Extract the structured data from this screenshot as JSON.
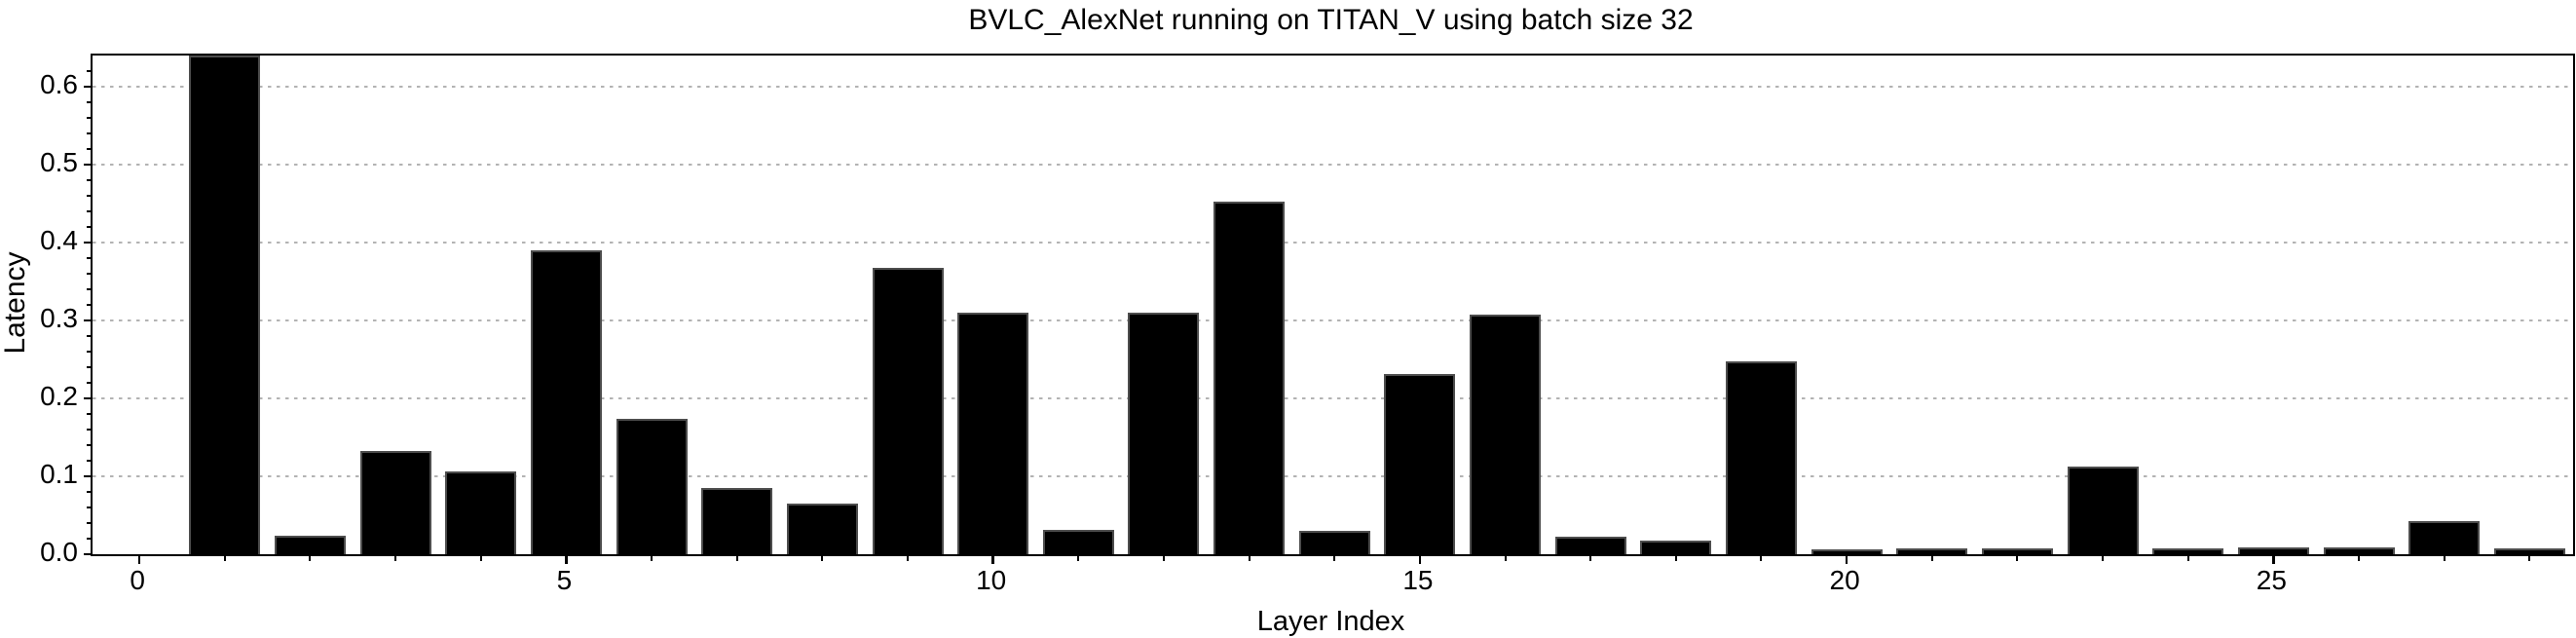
{
  "page": {
    "background": "#ffffff"
  },
  "chart_data": {
    "type": "bar",
    "title": "BVLC_AlexNet running on TITAN_V using batch size 32",
    "xlabel": "Layer Index",
    "ylabel": "Latency",
    "x": [
      1,
      2,
      3,
      4,
      5,
      6,
      7,
      8,
      9,
      10,
      11,
      12,
      13,
      14,
      15,
      16,
      17,
      18,
      19,
      20,
      21,
      22,
      23,
      24,
      25,
      26,
      27,
      28
    ],
    "values": [
      0.64,
      0.024,
      0.132,
      0.106,
      0.39,
      0.174,
      0.085,
      0.065,
      0.367,
      0.31,
      0.031,
      0.31,
      0.453,
      0.03,
      0.231,
      0.307,
      0.023,
      0.018,
      0.247,
      0.006,
      0.008,
      0.008,
      0.113,
      0.008,
      0.009,
      0.009,
      0.042,
      0.008
    ],
    "bar_width": 0.833,
    "xticks": [
      0,
      5,
      10,
      15,
      20,
      25
    ],
    "xtick_labels": [
      "0",
      "5",
      "10",
      "15",
      "20",
      "25"
    ],
    "yticks": [
      0,
      0.1,
      0.2,
      0.3,
      0.4,
      0.5,
      0.6
    ],
    "ytick_labels": [
      "0.0",
      "0.1",
      "0.2",
      "0.3",
      "0.4",
      "0.5",
      "0.6"
    ],
    "xlim": [
      -0.55,
      28.51
    ],
    "ylim": [
      0,
      0.64
    ],
    "y_minor_step": 0.02,
    "x_minor_step": 1,
    "grid": {
      "axis": "y",
      "style": "dotted",
      "color": "#b3b3b3",
      "on_ticks": [
        0.1,
        0.2,
        0.3,
        0.4,
        0.5,
        0.6
      ]
    },
    "legend": null,
    "colors": {
      "bar_fill": "#000000",
      "bar_edge": "#4d4d4d",
      "grid": "#b3b3b3",
      "spine": "#000000",
      "text": "#000000"
    }
  }
}
